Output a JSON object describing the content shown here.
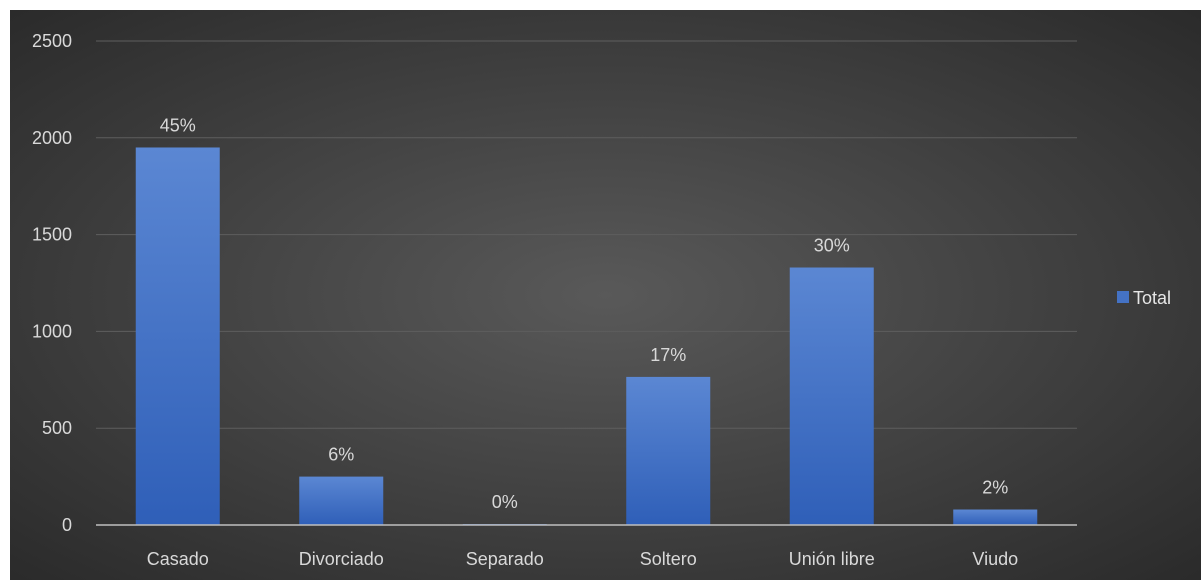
{
  "chart_data": {
    "type": "bar",
    "categories": [
      "Casado",
      "Divorciado",
      "Separado",
      "Soltero",
      "Unión libre",
      "Viudo"
    ],
    "series": [
      {
        "name": "Total",
        "values": [
          1950,
          250,
          5,
          765,
          1330,
          80
        ]
      }
    ],
    "data_labels": [
      "45%",
      "6%",
      "0%",
      "17%",
      "30%",
      "2%"
    ],
    "yticks": [
      0,
      500,
      1000,
      1500,
      2000,
      2500
    ],
    "ylim": [
      0,
      2500
    ],
    "grid": true,
    "legend": "right",
    "colors": {
      "bar": "#4472c4",
      "background": "#3b3b3b",
      "grid": "#5e5e5e",
      "axis": "#bfbfbf",
      "text": "#d9d9d9"
    }
  }
}
